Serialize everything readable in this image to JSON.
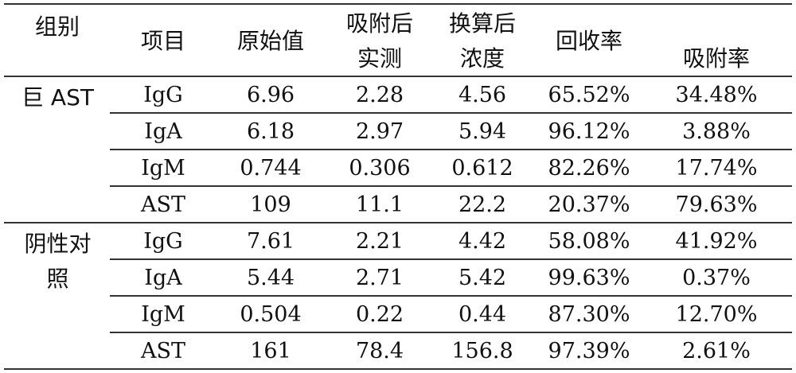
{
  "table": {
    "headers": [
      "组别",
      "项目",
      "原始值",
      "吸附后\n实测",
      "换算后\n浓度",
      "回收率",
      "吸附率"
    ],
    "header_lines": {
      "h0": "组别",
      "h1": "项目",
      "h2": "原始值",
      "h3a": "吸附后",
      "h3b": "实测",
      "h4a": "换算后",
      "h4b": "浓度",
      "h5": "回收率",
      "h6": "吸附率"
    },
    "groups": [
      {
        "label_a": "巨 AST",
        "label_b": "",
        "rows": [
          [
            "IgG",
            "6.96",
            "2.28",
            "4.56",
            "65.52%",
            "34.48%"
          ],
          [
            "IgA",
            "6.18",
            "2.97",
            "5.94",
            "96.12%",
            "3.88%"
          ],
          [
            "IgM",
            "0.744",
            "0.306",
            "0.612",
            "82.26%",
            "17.74%"
          ],
          [
            "AST",
            "109",
            "11.1",
            "22.2",
            "20.37%",
            "79.63%"
          ]
        ]
      },
      {
        "label_a": "阴性对",
        "label_b": "照",
        "rows": [
          [
            "IgG",
            "7.61",
            "2.21",
            "4.42",
            "58.08%",
            "41.92%"
          ],
          [
            "IgA",
            "5.44",
            "2.71",
            "5.42",
            "99.63%",
            "0.37%"
          ],
          [
            "IgM",
            "0.504",
            "0.22",
            "0.44",
            "87.30%",
            "12.70%"
          ],
          [
            "AST",
            "161",
            "78.4",
            "156.8",
            "97.39%",
            "2.61%"
          ]
        ]
      }
    ]
  }
}
